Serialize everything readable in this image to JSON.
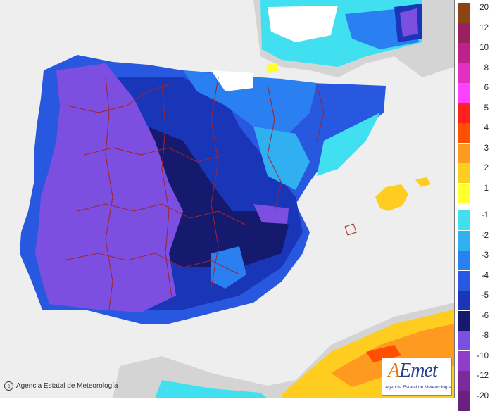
{
  "map": {
    "credit": "Agencia Estatal de Meteorología",
    "colors": {
      "sea": "#eeeeee",
      "land_background": "#d4d4d4",
      "border_lines": "#a0232a"
    }
  },
  "logo": {
    "title_prefix": "A",
    "title_rest": "Emet",
    "subtitle": "Agencia Estatal de Meteorología"
  },
  "legend": {
    "entries": [
      {
        "label": "20",
        "color": "#8b4513"
      },
      {
        "label": "12",
        "color": "#9b2060"
      },
      {
        "label": "10",
        "color": "#c0208a"
      },
      {
        "label": "8",
        "color": "#e030c0"
      },
      {
        "label": "6",
        "color": "#ff40ff"
      },
      {
        "label": "5",
        "color": "#ff2020"
      },
      {
        "label": "4",
        "color": "#ff5000"
      },
      {
        "label": "3",
        "color": "#ff9a20"
      },
      {
        "label": "2",
        "color": "#ffcc20"
      },
      {
        "label": "1",
        "color": "#ffff30"
      },
      {
        "label": "-1",
        "color": "#40e0f0"
      },
      {
        "label": "-2",
        "color": "#30b0f0"
      },
      {
        "label": "-3",
        "color": "#2a80f0"
      },
      {
        "label": "-4",
        "color": "#2858e0"
      },
      {
        "label": "-5",
        "color": "#1a36b8"
      },
      {
        "label": "-6",
        "color": "#161a6e"
      },
      {
        "label": "-8",
        "color": "#7d4fe0"
      },
      {
        "label": "-10",
        "color": "#8e3ec8"
      },
      {
        "label": "-12",
        "color": "#7a2a9a"
      },
      {
        "label": "-20",
        "color": "#6a2280"
      }
    ]
  }
}
